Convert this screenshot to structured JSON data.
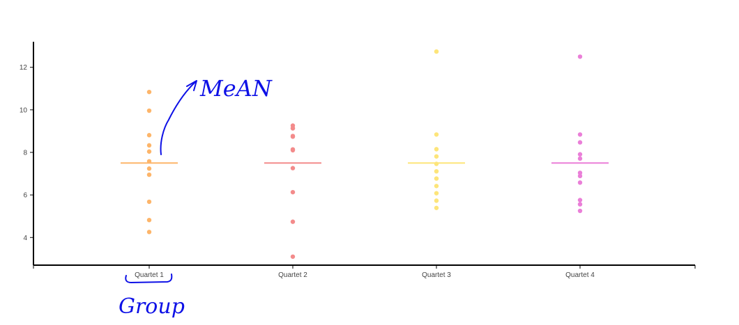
{
  "chart_data": {
    "type": "scatter",
    "title": "",
    "xlabel": "",
    "ylabel": "",
    "categories": [
      "Quartet 1",
      "Quartet 2",
      "Quartet 3",
      "Quartet 4"
    ],
    "ylim": [
      2.7,
      13.2
    ],
    "yticks": [
      4,
      6,
      8,
      10,
      12
    ],
    "grid": false,
    "series": [
      {
        "category": "Quartet 1",
        "color": "#fdb56a",
        "mean": 7.5,
        "values": [
          10.84,
          9.96,
          8.81,
          8.33,
          8.04,
          7.58,
          7.24,
          6.95,
          5.68,
          4.82,
          4.26
        ]
      },
      {
        "category": "Quartet 2",
        "color": "#f38b8b",
        "mean": 7.5,
        "values": [
          9.26,
          9.14,
          9.13,
          8.77,
          8.74,
          8.14,
          8.1,
          7.26,
          6.13,
          4.74,
          3.1
        ]
      },
      {
        "category": "Quartet 3",
        "color": "#fde57a",
        "mean": 7.5,
        "values": [
          12.74,
          8.84,
          8.15,
          7.81,
          7.46,
          7.11,
          6.77,
          6.42,
          6.08,
          5.73,
          5.39
        ]
      },
      {
        "category": "Quartet 4",
        "color": "#ea7fd8",
        "mean": 7.5,
        "values": [
          12.5,
          8.84,
          8.47,
          7.91,
          7.71,
          7.04,
          6.89,
          6.58,
          5.76,
          5.56,
          5.25
        ]
      }
    ]
  },
  "annotations": {
    "mean_label": "MeAN",
    "group_label": "Group",
    "color": "#0d10e6"
  }
}
